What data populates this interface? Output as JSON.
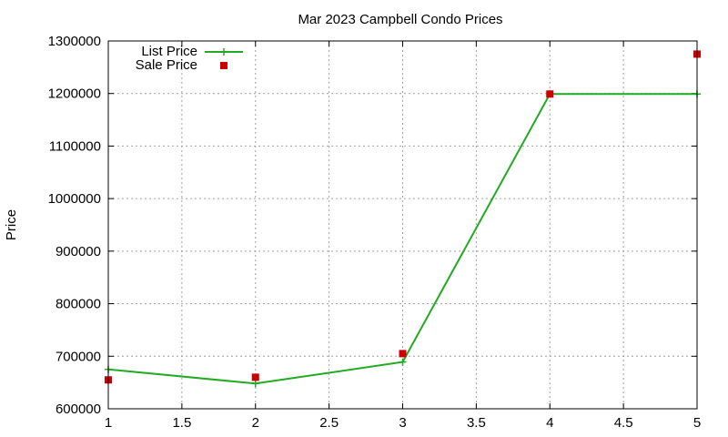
{
  "chart_data": {
    "type": "line",
    "title": "Mar 2023 Campbell Condo Prices",
    "xlabel": "",
    "ylabel": "Price",
    "xlim": [
      1,
      5
    ],
    "ylim": [
      600000,
      1300000
    ],
    "x_ticks": [
      "1",
      "1.5",
      "2",
      "2.5",
      "3",
      "3.5",
      "4",
      "4.5",
      "5"
    ],
    "y_ticks": [
      "600000",
      "700000",
      "800000",
      "900000",
      "1000000",
      "1100000",
      "1200000",
      "1300000"
    ],
    "grid": true,
    "legend_position": "top-left",
    "series": [
      {
        "name": "List Price",
        "style": "line-with-plus-markers",
        "color": "#22aa22",
        "x": [
          1,
          2,
          3,
          4,
          5
        ],
        "y": [
          675000,
          648000,
          689000,
          1199000,
          1199000
        ]
      },
      {
        "name": "Sale Price",
        "style": "square-markers",
        "color": "#cc0000",
        "x": [
          1,
          2,
          3,
          4,
          5
        ],
        "y": [
          655000,
          660000,
          705000,
          1199000,
          1275000
        ]
      }
    ]
  }
}
